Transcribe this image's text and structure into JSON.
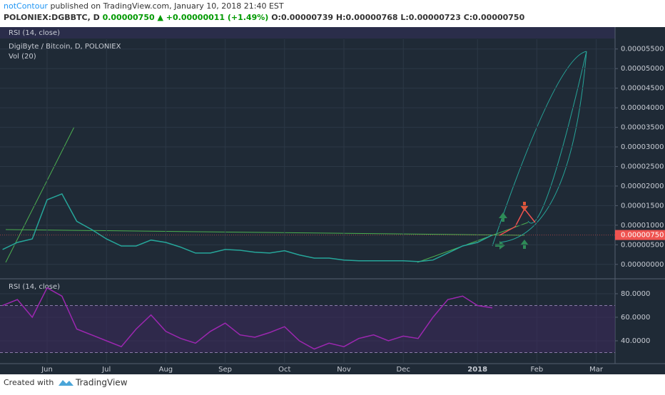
{
  "header": {
    "author": "notContour",
    "published": "published on TradingView.com, January 10, 2018 21:40 EST",
    "symbol": "POLONIEX:DGBBTC, D",
    "last": "0.00000750",
    "change": "+0.00000011 (+1.49%)",
    "open": "O:0.00000739",
    "high": "H:0.00000768",
    "low": "L:0.00000723",
    "close": "C:0.00000750",
    "collapsed_pane": "RSI (14, close)"
  },
  "footer": {
    "created": "Created with",
    "brand": "TradingView"
  },
  "chart_data": [
    {
      "type": "line",
      "title": "DigiByte / Bitcoin, D, POLONIEX",
      "subtitle": "Vol (20)",
      "categories": [
        null,
        null,
        null,
        "Jun",
        null,
        null,
        null,
        "Jul",
        null,
        null,
        null,
        "Aug",
        null,
        null,
        null,
        "Sep",
        null,
        null,
        null,
        "Oct",
        null,
        null,
        null,
        "Nov",
        null,
        null,
        null,
        "Dec",
        null,
        null,
        null,
        null,
        "2018",
        null,
        null,
        null,
        "Feb",
        null,
        null,
        null,
        "Mar"
      ],
      "series": [
        {
          "color": "#26a69a",
          "values": [
            3.8e-06,
            5.6e-06,
            6.5e-06,
            1.65e-05,
            1.8e-05,
            1.1e-05,
            8.9e-06,
            6.5e-06,
            4.7e-06,
            4.7e-06,
            6.2e-06,
            5.6e-06,
            4.4e-06,
            2.9e-06,
            2.9e-06,
            3.8e-06,
            3.6e-06,
            3.1e-06,
            2.9e-06,
            3.5e-06,
            2.4e-06,
            1.6e-06,
            1.6e-06,
            1.1e-06,
            9e-07,
            9e-07,
            9e-07,
            9e-07,
            7e-07,
            1.1e-06,
            2.9e-06,
            4.7e-06,
            5.6e-06,
            7.5e-06,
            null,
            null,
            null,
            null,
            null,
            null,
            null
          ]
        }
      ],
      "last_value": {
        "value": 7.5e-06,
        "label": "0.00000750",
        "color": "#ef5350"
      },
      "ylim": [
        -3.5e-06,
        5.75e-05
      ],
      "yticks": [
        {
          "value": 0,
          "label": "0.00000000"
        },
        {
          "value": 5e-06,
          "label": "0.00000500"
        },
        {
          "value": 1e-05,
          "label": "0.00001000"
        },
        {
          "value": 1.5e-05,
          "label": "0.00001500"
        },
        {
          "value": 2e-05,
          "label": "0.00002000"
        },
        {
          "value": 2.5e-05,
          "label": "0.00002500"
        },
        {
          "value": 3e-05,
          "label": "0.00003000"
        },
        {
          "value": 3.5e-05,
          "label": "0.00003500"
        },
        {
          "value": 4e-05,
          "label": "0.00004000"
        },
        {
          "value": 4.5e-05,
          "label": "0.00004500"
        },
        {
          "value": 5e-05,
          "label": "0.00005000"
        },
        {
          "value": 5.5e-05,
          "label": "0.00005500"
        }
      ],
      "grid": true
    },
    {
      "type": "line",
      "title": "RSI (14, close)",
      "categories": [
        null,
        null,
        null,
        "Jun",
        null,
        null,
        null,
        "Jul",
        null,
        null,
        null,
        "Aug",
        null,
        null,
        null,
        "Sep",
        null,
        null,
        null,
        "Oct",
        null,
        null,
        null,
        "Nov",
        null,
        null,
        null,
        "Dec",
        null,
        null,
        null,
        null,
        "2018",
        null,
        null,
        null,
        "Feb",
        null,
        null,
        null,
        "Mar"
      ],
      "series": [
        {
          "color": "#9c27b0",
          "values": [
            70,
            75,
            60,
            85,
            78,
            50,
            45,
            40,
            35,
            50,
            62,
            48,
            42,
            38,
            48,
            55,
            45,
            43,
            47,
            52,
            40,
            33,
            38,
            35,
            42,
            45,
            40,
            44,
            42,
            60,
            75,
            78,
            70,
            68,
            null,
            null,
            null,
            null,
            null,
            null,
            null
          ]
        }
      ],
      "hlines": [
        30,
        70
      ],
      "ylim": [
        20.6,
        92.1
      ],
      "yticks": [
        {
          "value": 40,
          "label": "40.0000"
        },
        {
          "value": 60,
          "label": "60.0000"
        },
        {
          "value": 80,
          "label": "80.0000"
        }
      ],
      "grid": true
    }
  ]
}
